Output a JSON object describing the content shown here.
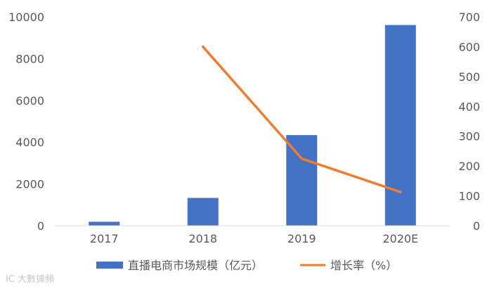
{
  "chart_data": {
    "type": "bar",
    "categories": [
      "2017",
      "2018",
      "2019",
      "2020E"
    ],
    "series": [
      {
        "name": "直播电商市场规模（亿元）",
        "kind": "bar",
        "axis": "left",
        "color": "#4472C4",
        "values": [
          190,
          1330,
          4340,
          9610
        ]
      },
      {
        "name": "增长率（%）",
        "kind": "line",
        "axis": "right",
        "color": "#ED7D31",
        "values": [
          null,
          600,
          225,
          113
        ]
      }
    ],
    "y_left": {
      "min": 0,
      "max": 10000,
      "ticks": [
        "0",
        "2000",
        "4000",
        "6000",
        "8000",
        "10000"
      ]
    },
    "y_right": {
      "min": 0,
      "max": 700,
      "ticks": [
        "0",
        "100",
        "200",
        "300",
        "400",
        "500",
        "600",
        "700"
      ]
    },
    "grid": false,
    "legend": "bottom"
  },
  "watermark": "IC 大數據頻"
}
